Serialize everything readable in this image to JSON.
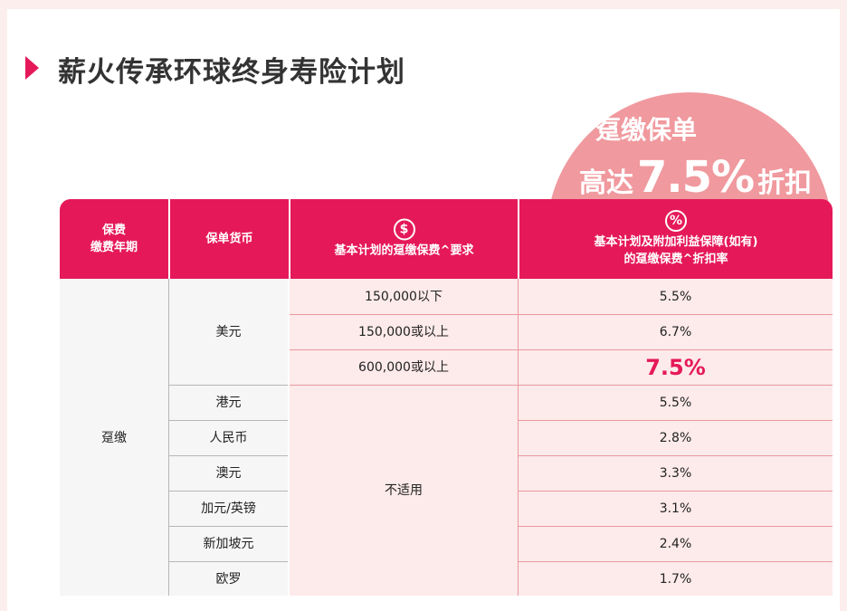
{
  "title": "薪火传承环球终身寿险计划",
  "promo": {
    "line1": "趸缴保单",
    "prefix": "高达",
    "rate": "7.5%",
    "suffix": "折扣"
  },
  "table": {
    "headers": {
      "col1": [
        "保费",
        "缴费年期"
      ],
      "col2": "保单货币",
      "col3": {
        "icon": "$",
        "label": "基本计划的趸缴保费^要求"
      },
      "col4": {
        "icon": "%",
        "line1": "基本计划及附加利益保障(如有)",
        "line2": "的趸缴保费^折扣率"
      }
    },
    "payment_term": "趸缴",
    "usd": {
      "currency": "美元",
      "tiers": [
        {
          "requirement": "150,000以下",
          "rate": "5.5%"
        },
        {
          "requirement": "150,000或以上",
          "rate": "6.7%"
        },
        {
          "requirement": "600,000或以上",
          "rate": "7.5%"
        }
      ]
    },
    "not_applicable": "不适用",
    "others": [
      {
        "currency": "港元",
        "rate": "5.5%"
      },
      {
        "currency": "人民币",
        "rate": "2.8%"
      },
      {
        "currency": "澳元",
        "rate": "3.3%"
      },
      {
        "currency": "加元/英镑",
        "rate": "3.1%"
      },
      {
        "currency": "新加坡元",
        "rate": "2.4%"
      },
      {
        "currency": "欧罗",
        "rate": "1.7%"
      }
    ]
  },
  "colors": {
    "accent": "#e5195a",
    "promo_circle": "#f0999e",
    "row_bg": "#fdeaea"
  }
}
